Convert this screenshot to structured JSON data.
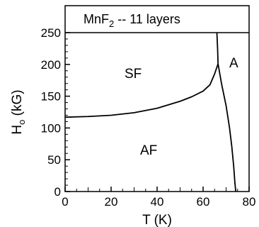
{
  "chart_data": {
    "type": "line",
    "title_main": "MnF",
    "title_sub": "2",
    "title_rest": " -- 11 layers",
    "xlabel": "T  (K)",
    "ylabel_main": "H",
    "ylabel_sub": "o",
    "ylabel_rest": " (kG)",
    "xlim": [
      0,
      80
    ],
    "ylim": [
      0,
      250
    ],
    "xticks": [
      0,
      20,
      40,
      60,
      80
    ],
    "yticks": [
      0,
      50,
      100,
      150,
      200,
      250
    ],
    "region_labels": [
      "SF",
      "AF",
      "A"
    ],
    "series": [
      {
        "x": [
          0,
          10,
          20,
          30,
          40,
          50,
          55,
          60,
          63,
          65,
          66.5
        ],
        "y": [
          117,
          118,
          120,
          124,
          131,
          142,
          149,
          158,
          168,
          185,
          201
        ]
      },
      {
        "x": [
          66.5,
          68,
          70,
          71.5,
          72.5,
          73.3,
          73.8,
          74.2
        ],
        "y": [
          201,
          170,
          135,
          100,
          70,
          40,
          15,
          0
        ]
      },
      {
        "x": [
          66.5,
          66.3,
          66.0
        ],
        "y": [
          201,
          225,
          250
        ]
      }
    ]
  }
}
